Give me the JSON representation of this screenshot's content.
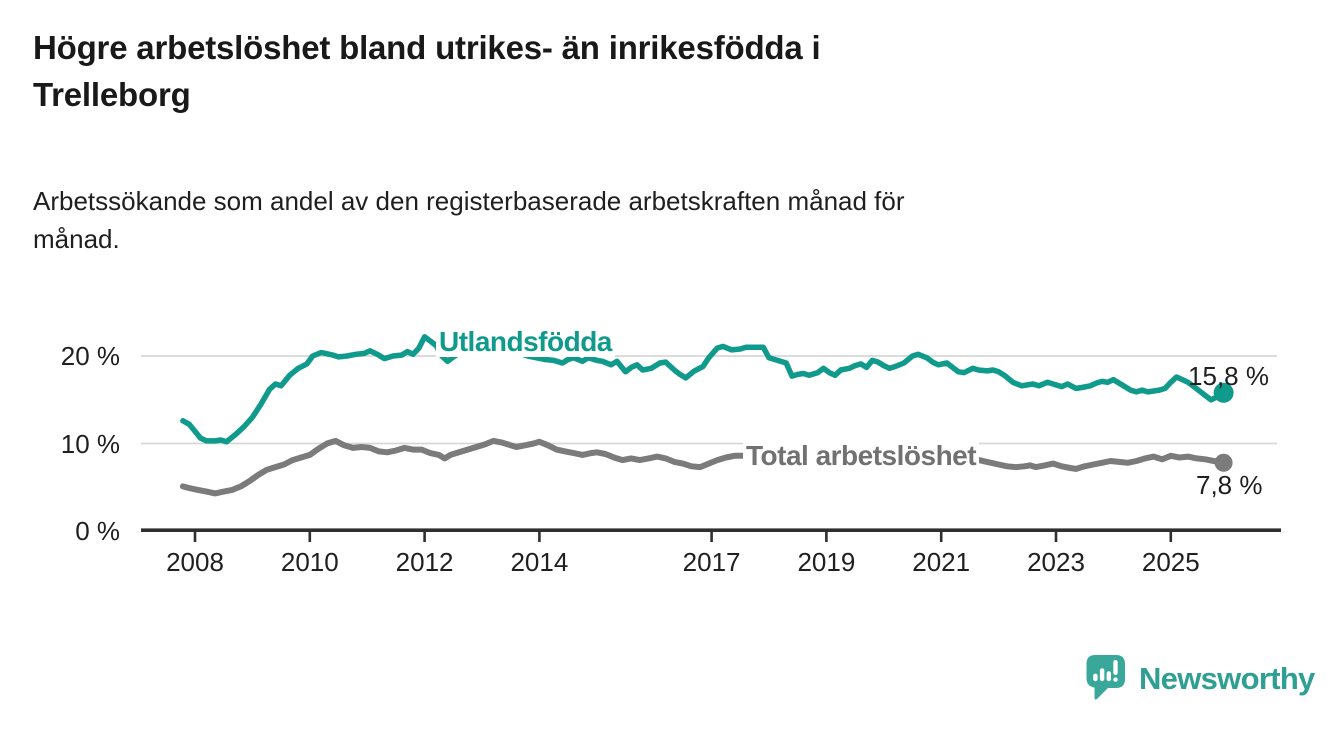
{
  "header": {
    "title_line1": "Högre arbetslöshet bland utrikes- än inrikesfödda i",
    "title_line2": "Trelleborg",
    "subtitle_line1": "Arbetssökande som andel av den registerbaserade arbetskraften månad för",
    "subtitle_line2": "månad."
  },
  "footer": {
    "brand": "Newsworthy"
  },
  "colors": {
    "series_utlandsfodda": "#0f9a8c",
    "series_total": "#7b7b7b",
    "series_total_label": "#717171",
    "gridline": "#d7d7d7",
    "axis": "#2f2f2f",
    "text": "#1f1f1f",
    "logo_teal": "#3aa79b"
  },
  "chart_data": {
    "type": "line",
    "title": "Högre arbetslöshet bland utrikes- än inrikesfödda i Trelleborg",
    "subtitle": "Arbetssökande som andel av den registerbaserade arbetskraften månad för månad.",
    "xlabel": "",
    "ylabel": "",
    "grid": "horizontal",
    "legend_position": "inline-labels",
    "x_axis": {
      "range": [
        2007.6,
        2026.3
      ],
      "ticks": [
        {
          "label": "2008",
          "value": 2008
        },
        {
          "label": "2010",
          "value": 2010
        },
        {
          "label": "2012",
          "value": 2012
        },
        {
          "label": "2014",
          "value": 2014
        },
        {
          "label": "2017",
          "value": 2017
        },
        {
          "label": "2019",
          "value": 2019
        },
        {
          "label": "2021",
          "value": 2021
        },
        {
          "label": "2023",
          "value": 2023
        },
        {
          "label": "2025",
          "value": 2025
        }
      ]
    },
    "y_axis": {
      "unit": "%",
      "range": [
        0,
        23
      ],
      "ticks": [
        {
          "label": "20 %",
          "value": 20
        },
        {
          "label": "10 %",
          "value": 10
        },
        {
          "label": "0 %",
          "value": 0
        }
      ]
    },
    "series": [
      {
        "name": "Utlandsfödda",
        "color": "#0f9a8c",
        "line_width": 5.5,
        "end_dot_radius": 10,
        "end_label": "15,8 %",
        "end_value": 15.8,
        "points": [
          [
            2007.79,
            12.6
          ],
          [
            2007.9,
            12.2
          ],
          [
            2008.0,
            11.4
          ],
          [
            2008.1,
            10.6
          ],
          [
            2008.2,
            10.3
          ],
          [
            2008.35,
            10.3
          ],
          [
            2008.45,
            10.4
          ],
          [
            2008.55,
            10.2
          ],
          [
            2008.7,
            11.0
          ],
          [
            2008.85,
            11.9
          ],
          [
            2009.0,
            13.0
          ],
          [
            2009.15,
            14.5
          ],
          [
            2009.3,
            16.2
          ],
          [
            2009.4,
            16.8
          ],
          [
            2009.5,
            16.6
          ],
          [
            2009.65,
            17.8
          ],
          [
            2009.8,
            18.6
          ],
          [
            2009.95,
            19.1
          ],
          [
            2010.05,
            20.0
          ],
          [
            2010.2,
            20.4
          ],
          [
            2010.4,
            20.1
          ],
          [
            2010.5,
            19.9
          ],
          [
            2010.65,
            20.0
          ],
          [
            2010.8,
            20.2
          ],
          [
            2010.95,
            20.3
          ],
          [
            2011.05,
            20.6
          ],
          [
            2011.2,
            20.1
          ],
          [
            2011.3,
            19.7
          ],
          [
            2011.45,
            20.0
          ],
          [
            2011.6,
            20.1
          ],
          [
            2011.7,
            20.5
          ],
          [
            2011.8,
            20.2
          ],
          [
            2011.9,
            20.9
          ],
          [
            2012.0,
            22.2
          ],
          [
            2012.1,
            21.7
          ],
          [
            2012.2,
            21.2
          ],
          [
            2012.3,
            20.0
          ],
          [
            2012.4,
            19.4
          ],
          [
            2012.5,
            19.9
          ],
          [
            2012.6,
            20.3
          ],
          [
            2012.75,
            20.8
          ],
          [
            2012.9,
            21.2
          ],
          [
            2013.05,
            21.5
          ],
          [
            2013.2,
            21.4
          ],
          [
            2013.35,
            21.1
          ],
          [
            2013.5,
            20.7
          ],
          [
            2013.65,
            20.3
          ],
          [
            2013.8,
            20.0
          ],
          [
            2013.95,
            19.8
          ],
          [
            2014.1,
            19.6
          ],
          [
            2014.25,
            19.5
          ],
          [
            2014.4,
            19.2
          ],
          [
            2014.5,
            19.6
          ],
          [
            2014.6,
            19.8
          ],
          [
            2014.75,
            19.4
          ],
          [
            2014.85,
            19.8
          ],
          [
            2015.0,
            19.5
          ],
          [
            2015.1,
            19.4
          ],
          [
            2015.25,
            19.0
          ],
          [
            2015.35,
            19.4
          ],
          [
            2015.5,
            18.2
          ],
          [
            2015.6,
            18.7
          ],
          [
            2015.7,
            19.0
          ],
          [
            2015.8,
            18.4
          ],
          [
            2015.95,
            18.6
          ],
          [
            2016.1,
            19.2
          ],
          [
            2016.2,
            19.3
          ],
          [
            2016.35,
            18.4
          ],
          [
            2016.45,
            17.9
          ],
          [
            2016.55,
            17.5
          ],
          [
            2016.7,
            18.3
          ],
          [
            2016.85,
            18.8
          ],
          [
            2016.95,
            19.8
          ],
          [
            2017.1,
            20.9
          ],
          [
            2017.2,
            21.1
          ],
          [
            2017.35,
            20.7
          ],
          [
            2017.5,
            20.8
          ],
          [
            2017.6,
            21.0
          ],
          [
            2017.75,
            21.0
          ],
          [
            2017.9,
            21.0
          ],
          [
            2018.0,
            19.8
          ],
          [
            2018.15,
            19.5
          ],
          [
            2018.3,
            19.2
          ],
          [
            2018.4,
            17.7
          ],
          [
            2018.5,
            17.9
          ],
          [
            2018.6,
            18.0
          ],
          [
            2018.7,
            17.8
          ],
          [
            2018.85,
            18.1
          ],
          [
            2018.95,
            18.6
          ],
          [
            2019.05,
            18.1
          ],
          [
            2019.15,
            17.8
          ],
          [
            2019.25,
            18.4
          ],
          [
            2019.4,
            18.6
          ],
          [
            2019.5,
            18.9
          ],
          [
            2019.6,
            19.1
          ],
          [
            2019.7,
            18.7
          ],
          [
            2019.8,
            19.5
          ],
          [
            2019.9,
            19.3
          ],
          [
            2020.0,
            18.9
          ],
          [
            2020.1,
            18.6
          ],
          [
            2020.2,
            18.8
          ],
          [
            2020.35,
            19.2
          ],
          [
            2020.5,
            20.0
          ],
          [
            2020.6,
            20.2
          ],
          [
            2020.75,
            19.8
          ],
          [
            2020.85,
            19.3
          ],
          [
            2020.95,
            19.0
          ],
          [
            2021.1,
            19.2
          ],
          [
            2021.2,
            18.7
          ],
          [
            2021.3,
            18.2
          ],
          [
            2021.4,
            18.1
          ],
          [
            2021.55,
            18.6
          ],
          [
            2021.65,
            18.4
          ],
          [
            2021.8,
            18.3
          ],
          [
            2021.9,
            18.4
          ],
          [
            2022.0,
            18.2
          ],
          [
            2022.1,
            17.8
          ],
          [
            2022.25,
            17.0
          ],
          [
            2022.4,
            16.6
          ],
          [
            2022.5,
            16.7
          ],
          [
            2022.6,
            16.8
          ],
          [
            2022.7,
            16.6
          ],
          [
            2022.85,
            17.0
          ],
          [
            2022.95,
            16.8
          ],
          [
            2023.1,
            16.5
          ],
          [
            2023.2,
            16.8
          ],
          [
            2023.35,
            16.3
          ],
          [
            2023.45,
            16.4
          ],
          [
            2023.6,
            16.6
          ],
          [
            2023.7,
            16.9
          ],
          [
            2023.8,
            17.1
          ],
          [
            2023.9,
            17.0
          ],
          [
            2024.0,
            17.3
          ],
          [
            2024.1,
            16.9
          ],
          [
            2024.2,
            16.5
          ],
          [
            2024.3,
            16.1
          ],
          [
            2024.4,
            15.9
          ],
          [
            2024.5,
            16.1
          ],
          [
            2024.6,
            15.9
          ],
          [
            2024.7,
            16.0
          ],
          [
            2024.8,
            16.1
          ],
          [
            2024.9,
            16.3
          ],
          [
            2025.0,
            17.0
          ],
          [
            2025.1,
            17.6
          ],
          [
            2025.2,
            17.3
          ],
          [
            2025.3,
            17.0
          ],
          [
            2025.4,
            16.5
          ],
          [
            2025.5,
            16.0
          ],
          [
            2025.6,
            15.5
          ],
          [
            2025.7,
            15.0
          ],
          [
            2025.8,
            15.3
          ],
          [
            2025.92,
            15.8
          ]
        ]
      },
      {
        "name": "Total arbetslöshet",
        "color": "#7b7b7b",
        "line_width": 6,
        "end_dot_radius": 9,
        "end_label": "7,8 %",
        "end_value": 7.8,
        "points": [
          [
            2007.79,
            5.1
          ],
          [
            2007.9,
            4.9
          ],
          [
            2008.05,
            4.7
          ],
          [
            2008.2,
            4.5
          ],
          [
            2008.35,
            4.3
          ],
          [
            2008.5,
            4.5
          ],
          [
            2008.65,
            4.7
          ],
          [
            2008.8,
            5.1
          ],
          [
            2008.95,
            5.7
          ],
          [
            2009.1,
            6.4
          ],
          [
            2009.25,
            7.0
          ],
          [
            2009.4,
            7.3
          ],
          [
            2009.55,
            7.6
          ],
          [
            2009.7,
            8.1
          ],
          [
            2009.85,
            8.4
          ],
          [
            2010.0,
            8.7
          ],
          [
            2010.15,
            9.4
          ],
          [
            2010.3,
            10.0
          ],
          [
            2010.45,
            10.3
          ],
          [
            2010.6,
            9.8
          ],
          [
            2010.75,
            9.5
          ],
          [
            2010.9,
            9.6
          ],
          [
            2011.05,
            9.5
          ],
          [
            2011.2,
            9.1
          ],
          [
            2011.35,
            9.0
          ],
          [
            2011.5,
            9.2
          ],
          [
            2011.65,
            9.5
          ],
          [
            2011.8,
            9.3
          ],
          [
            2011.95,
            9.3
          ],
          [
            2012.1,
            8.9
          ],
          [
            2012.25,
            8.7
          ],
          [
            2012.35,
            8.3
          ],
          [
            2012.45,
            8.7
          ],
          [
            2012.6,
            9.0
          ],
          [
            2012.75,
            9.3
          ],
          [
            2012.9,
            9.6
          ],
          [
            2013.05,
            9.9
          ],
          [
            2013.2,
            10.3
          ],
          [
            2013.35,
            10.1
          ],
          [
            2013.5,
            9.8
          ],
          [
            2013.6,
            9.6
          ],
          [
            2013.75,
            9.8
          ],
          [
            2013.9,
            10.0
          ],
          [
            2014.0,
            10.2
          ],
          [
            2014.15,
            9.8
          ],
          [
            2014.3,
            9.3
          ],
          [
            2014.45,
            9.1
          ],
          [
            2014.6,
            8.9
          ],
          [
            2014.75,
            8.7
          ],
          [
            2014.9,
            8.9
          ],
          [
            2015.0,
            9.0
          ],
          [
            2015.15,
            8.8
          ],
          [
            2015.3,
            8.4
          ],
          [
            2015.45,
            8.1
          ],
          [
            2015.6,
            8.3
          ],
          [
            2015.75,
            8.1
          ],
          [
            2015.9,
            8.3
          ],
          [
            2016.05,
            8.5
          ],
          [
            2016.2,
            8.3
          ],
          [
            2016.35,
            7.9
          ],
          [
            2016.5,
            7.7
          ],
          [
            2016.65,
            7.4
          ],
          [
            2016.8,
            7.3
          ],
          [
            2016.95,
            7.7
          ],
          [
            2017.1,
            8.1
          ],
          [
            2017.25,
            8.4
          ],
          [
            2017.4,
            8.6
          ],
          [
            2017.55,
            8.6
          ],
          [
            2017.7,
            8.5
          ],
          [
            2017.9,
            8.3
          ],
          [
            2018.1,
            8.1
          ],
          [
            2018.3,
            8.0
          ],
          [
            2018.5,
            7.9
          ],
          [
            2018.7,
            7.8
          ],
          [
            2018.9,
            7.9
          ],
          [
            2019.1,
            7.8
          ],
          [
            2019.3,
            7.8
          ],
          [
            2019.5,
            7.7
          ],
          [
            2019.7,
            7.8
          ],
          [
            2019.9,
            7.9
          ],
          [
            2020.05,
            8.1
          ],
          [
            2020.2,
            8.7
          ],
          [
            2020.35,
            9.2
          ],
          [
            2020.5,
            9.4
          ],
          [
            2020.65,
            9.3
          ],
          [
            2020.8,
            9.1
          ],
          [
            2021.0,
            9.0
          ],
          [
            2021.2,
            8.8
          ],
          [
            2021.4,
            8.5
          ],
          [
            2021.6,
            8.2
          ],
          [
            2021.8,
            7.9
          ],
          [
            2022.0,
            7.6
          ],
          [
            2022.15,
            7.4
          ],
          [
            2022.3,
            7.3
          ],
          [
            2022.45,
            7.4
          ],
          [
            2022.55,
            7.5
          ],
          [
            2022.65,
            7.3
          ],
          [
            2022.8,
            7.5
          ],
          [
            2022.95,
            7.7
          ],
          [
            2023.1,
            7.4
          ],
          [
            2023.25,
            7.2
          ],
          [
            2023.35,
            7.1
          ],
          [
            2023.5,
            7.4
          ],
          [
            2023.65,
            7.6
          ],
          [
            2023.8,
            7.8
          ],
          [
            2023.95,
            8.0
          ],
          [
            2024.1,
            7.9
          ],
          [
            2024.25,
            7.8
          ],
          [
            2024.4,
            8.0
          ],
          [
            2024.55,
            8.3
          ],
          [
            2024.7,
            8.5
          ],
          [
            2024.85,
            8.2
          ],
          [
            2025.0,
            8.6
          ],
          [
            2025.15,
            8.4
          ],
          [
            2025.3,
            8.5
          ],
          [
            2025.45,
            8.3
          ],
          [
            2025.6,
            8.2
          ],
          [
            2025.75,
            8.0
          ],
          [
            2025.92,
            7.8
          ]
        ]
      }
    ]
  }
}
